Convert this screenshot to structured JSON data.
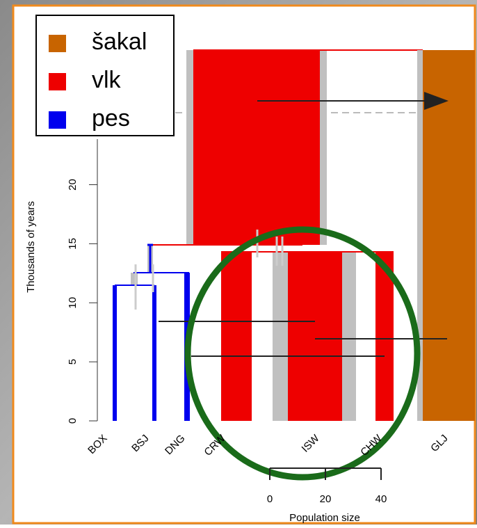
{
  "chart_data": {
    "type": "demography",
    "y_label": "Thousands of years",
    "ylim": [
      0,
      31.4
    ],
    "yticks": [
      0,
      5,
      10,
      15,
      20
    ],
    "categories": [
      "BOX",
      "BSJ",
      "DNG",
      "CRW",
      "ISW",
      "CHW",
      "GLJ"
    ],
    "series": [
      {
        "name": "šakal",
        "color": "#c86400"
      },
      {
        "name": "vlk",
        "color": "#ee0000"
      },
      {
        "name": "pes",
        "color": "#0000ee"
      }
    ],
    "scale_label": "Population size",
    "scale_lim": [
      0,
      40
    ],
    "scale_ticks": [
      0,
      20,
      40
    ]
  }
}
